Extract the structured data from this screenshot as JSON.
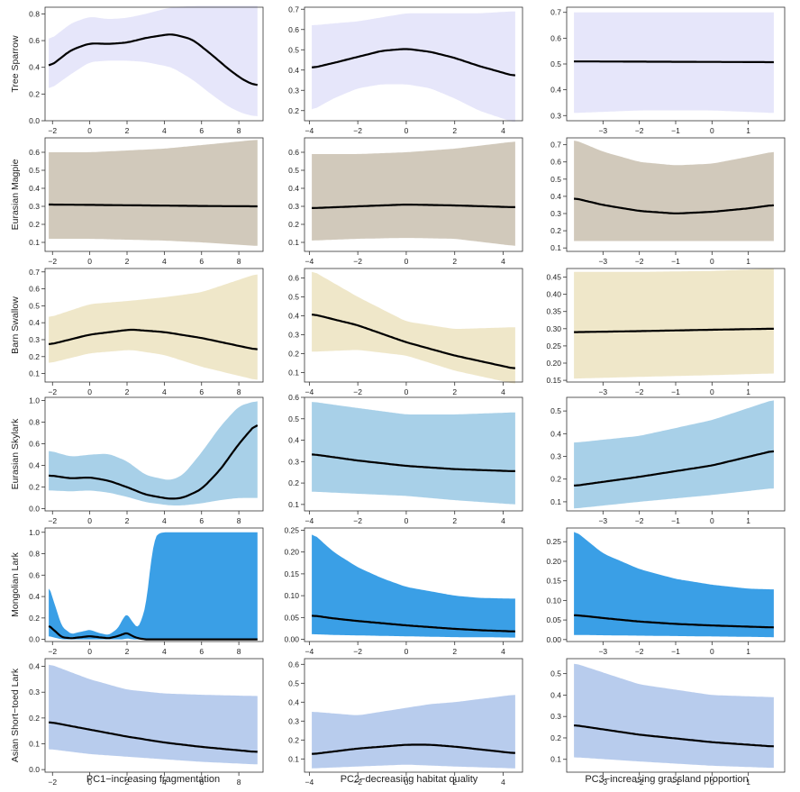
{
  "chart_data": {
    "type": "line",
    "layout": "6 rows x 3 columns of partial-effect plots with confidence bands",
    "column_xlabels": [
      "PC1−increasing fragmentation",
      "PC2−decreasing habitat quality",
      "PC3−increasing grassland proportion"
    ],
    "columns": [
      {
        "xlim": [
          -2.4,
          9.3
        ],
        "xticks": [
          -2,
          0,
          2,
          4,
          6,
          8
        ],
        "xrange": [
          -2.2,
          9.0
        ]
      },
      {
        "xlim": [
          -4.2,
          4.8
        ],
        "xticks": [
          -4,
          -2,
          0,
          2,
          4
        ],
        "xrange": [
          -3.9,
          4.5
        ]
      },
      {
        "xlim": [
          -4.0,
          2.0
        ],
        "xticks": [
          -3,
          -2,
          -1,
          0,
          1
        ],
        "xrange": [
          -3.8,
          1.7
        ]
      }
    ],
    "rows": [
      {
        "species": "Tree Sparrow",
        "color": "#e6e6fa",
        "panels": [
          {
            "ylim": [
              0.0,
              0.85
            ],
            "yticks": [
              "0.0",
              "0.2",
              "0.4",
              "0.6",
              "0.8"
            ],
            "x": [
              -2.2,
              -1,
              0,
              1,
              2,
              3,
              4.4,
              5.5,
              6.5,
              7.5,
              8.3,
              9
            ],
            "fit": [
              0.4,
              0.53,
              0.58,
              0.575,
              0.585,
              0.62,
              0.65,
              0.61,
              0.5,
              0.38,
              0.3,
              0.26
            ],
            "lower": [
              0.23,
              0.35,
              0.44,
              0.45,
              0.45,
              0.44,
              0.4,
              0.31,
              0.2,
              0.1,
              0.05,
              0.03
            ],
            "upper": [
              0.6,
              0.73,
              0.78,
              0.76,
              0.77,
              0.8,
              0.85,
              0.86,
              0.86,
              0.86,
              0.86,
              0.86
            ]
          },
          {
            "ylim": [
              0.15,
              0.71
            ],
            "yticks": [
              "0.2",
              "0.3",
              "0.4",
              "0.5",
              "0.6",
              "0.7"
            ],
            "x": [
              -3.9,
              -3,
              -2,
              -1,
              0,
              1,
              2,
              3,
              4.5
            ],
            "fit": [
              0.41,
              0.435,
              0.465,
              0.495,
              0.505,
              0.49,
              0.46,
              0.42,
              0.37
            ],
            "lower": [
              0.2,
              0.26,
              0.31,
              0.33,
              0.33,
              0.31,
              0.26,
              0.2,
              0.14
            ],
            "upper": [
              0.62,
              0.63,
              0.64,
              0.66,
              0.68,
              0.68,
              0.68,
              0.68,
              0.69
            ]
          },
          {
            "ylim": [
              0.28,
              0.72
            ],
            "yticks": [
              "0.3",
              "0.4",
              "0.5",
              "0.6",
              "0.7"
            ],
            "x": [
              -3.8,
              -2,
              0,
              1.7
            ],
            "fit": [
              0.51,
              0.509,
              0.508,
              0.507
            ],
            "lower": [
              0.31,
              0.32,
              0.32,
              0.31
            ],
            "upper": [
              0.7,
              0.7,
              0.7,
              0.7
            ]
          }
        ]
      },
      {
        "species": "Eurasian Magpie",
        "color": "#d1c9bb",
        "panels": [
          {
            "ylim": [
              0.05,
              0.68
            ],
            "yticks": [
              "0.1",
              "0.2",
              "0.3",
              "0.4",
              "0.5",
              "0.6"
            ],
            "x": [
              -2.2,
              0,
              2,
              4,
              6,
              9
            ],
            "fit": [
              0.31,
              0.308,
              0.306,
              0.304,
              0.302,
              0.3
            ],
            "lower": [
              0.12,
              0.12,
              0.115,
              0.11,
              0.1,
              0.08
            ],
            "upper": [
              0.6,
              0.6,
              0.61,
              0.62,
              0.64,
              0.67
            ]
          },
          {
            "ylim": [
              0.05,
              0.68
            ],
            "yticks": [
              "0.1",
              "0.2",
              "0.3",
              "0.4",
              "0.5",
              "0.6"
            ],
            "x": [
              -3.9,
              -2,
              0,
              2,
              4.5
            ],
            "fit": [
              0.29,
              0.3,
              0.31,
              0.305,
              0.295
            ],
            "lower": [
              0.11,
              0.12,
              0.125,
              0.12,
              0.08
            ],
            "upper": [
              0.59,
              0.59,
              0.6,
              0.62,
              0.66
            ]
          },
          {
            "ylim": [
              0.08,
              0.74
            ],
            "yticks": [
              "0.1",
              "0.2",
              "0.3",
              "0.4",
              "0.5",
              "0.6",
              "0.7"
            ],
            "x": [
              -3.8,
              -3,
              -2,
              -1,
              0,
              1,
              1.7
            ],
            "fit": [
              0.39,
              0.35,
              0.315,
              0.3,
              0.31,
              0.33,
              0.35
            ],
            "lower": [
              0.14,
              0.14,
              0.14,
              0.14,
              0.14,
              0.14,
              0.14
            ],
            "upper": [
              0.73,
              0.66,
              0.6,
              0.58,
              0.59,
              0.63,
              0.66
            ]
          }
        ]
      },
      {
        "species": "Barn Swallow",
        "color": "#efe7c9",
        "panels": [
          {
            "ylim": [
              0.05,
              0.72
            ],
            "yticks": [
              "0.1",
              "0.2",
              "0.3",
              "0.4",
              "0.5",
              "0.6",
              "0.7"
            ],
            "x": [
              -2.2,
              0,
              2.2,
              4,
              6,
              9
            ],
            "fit": [
              0.27,
              0.33,
              0.36,
              0.345,
              0.31,
              0.24
            ],
            "lower": [
              0.16,
              0.22,
              0.24,
              0.21,
              0.14,
              0.06
            ],
            "upper": [
              0.43,
              0.51,
              0.53,
              0.55,
              0.58,
              0.69
            ]
          },
          {
            "ylim": [
              0.05,
              0.65
            ],
            "yticks": [
              "0.1",
              "0.2",
              "0.3",
              "0.4",
              "0.5",
              "0.6"
            ],
            "x": [
              -3.9,
              -2,
              0,
              2,
              4.5
            ],
            "fit": [
              0.41,
              0.35,
              0.26,
              0.19,
              0.12
            ],
            "lower": [
              0.21,
              0.22,
              0.19,
              0.11,
              0.04
            ],
            "upper": [
              0.64,
              0.5,
              0.37,
              0.33,
              0.34
            ]
          },
          {
            "ylim": [
              0.145,
              0.475
            ],
            "yticks": [
              "0.15",
              "0.20",
              "0.25",
              "0.30",
              "0.35",
              "0.40",
              "0.45"
            ],
            "x": [
              -3.8,
              -2,
              0,
              1.7
            ],
            "fit": [
              0.29,
              0.293,
              0.297,
              0.3
            ],
            "lower": [
              0.155,
              0.16,
              0.165,
              0.17
            ],
            "upper": [
              0.465,
              0.465,
              0.468,
              0.475
            ]
          }
        ]
      },
      {
        "species": "Eurasian Skylark",
        "color": "#a8d0e8",
        "panels": [
          {
            "ylim": [
              -0.02,
              1.03
            ],
            "yticks": [
              "0.0",
              "0.2",
              "0.4",
              "0.6",
              "0.8",
              "1.0"
            ],
            "x": [
              -2.2,
              -1,
              0,
              1,
              2,
              3,
              4.3,
              5,
              6,
              7,
              8,
              9
            ],
            "fit": [
              0.31,
              0.28,
              0.29,
              0.26,
              0.2,
              0.13,
              0.09,
              0.1,
              0.18,
              0.36,
              0.6,
              0.8
            ],
            "lower": [
              0.17,
              0.16,
              0.17,
              0.15,
              0.11,
              0.06,
              0.03,
              0.03,
              0.05,
              0.08,
              0.1,
              0.1
            ],
            "upper": [
              0.54,
              0.48,
              0.5,
              0.51,
              0.44,
              0.31,
              0.26,
              0.31,
              0.52,
              0.76,
              0.95,
              1.0
            ]
          },
          {
            "ylim": [
              0.07,
              0.6
            ],
            "yticks": [
              "0.1",
              "0.2",
              "0.3",
              "0.4",
              "0.5",
              "0.6"
            ],
            "x": [
              -3.9,
              -2,
              0,
              2,
              4.5
            ],
            "fit": [
              0.335,
              0.305,
              0.28,
              0.265,
              0.255
            ],
            "lower": [
              0.16,
              0.15,
              0.14,
              0.12,
              0.1
            ],
            "upper": [
              0.58,
              0.55,
              0.52,
              0.52,
              0.53
            ]
          },
          {
            "ylim": [
              0.06,
              0.56
            ],
            "yticks": [
              "0.1",
              "0.2",
              "0.3",
              "0.4",
              "0.5"
            ],
            "x": [
              -3.8,
              -2,
              0,
              1.7
            ],
            "fit": [
              0.17,
              0.21,
              0.26,
              0.325
            ],
            "lower": [
              0.07,
              0.1,
              0.13,
              0.16
            ],
            "upper": [
              0.36,
              0.39,
              0.46,
              0.55
            ]
          }
        ]
      },
      {
        "species": "Mongolian Lark",
        "color": "#3a9fe6",
        "panels": [
          {
            "ylim": [
              -0.02,
              1.04
            ],
            "yticks": [
              "0.0",
              "0.2",
              "0.4",
              "0.6",
              "0.8",
              "1.0"
            ],
            "x": [
              -2.2,
              -1.5,
              -1,
              -0.5,
              0,
              0.5,
              1,
              1.5,
              1.8,
              2,
              2.3,
              2.6,
              3,
              3.3,
              3.5,
              3.7,
              4,
              5,
              6,
              7,
              8,
              9
            ],
            "fit": [
              0.13,
              0.02,
              0.01,
              0.02,
              0.03,
              0.02,
              0.01,
              0.03,
              0.05,
              0.06,
              0.03,
              0.01,
              0.0,
              0.0,
              0.0,
              0.0,
              0.0,
              0.0,
              0.0,
              0.0,
              0.0,
              0.0
            ],
            "lower": [
              0.03,
              0.0,
              0.0,
              0.0,
              0.0,
              0.0,
              0.0,
              0.0,
              0.0,
              0.01,
              0.0,
              0.0,
              0.0,
              0.0,
              0.0,
              0.0,
              0.0,
              0.0,
              0.0,
              0.0,
              0.0,
              0.0
            ],
            "upper": [
              0.5,
              0.12,
              0.05,
              0.07,
              0.09,
              0.06,
              0.04,
              0.1,
              0.2,
              0.24,
              0.16,
              0.1,
              0.3,
              0.75,
              0.95,
              0.99,
              1.0,
              1.0,
              1.0,
              1.0,
              1.0,
              1.0
            ]
          },
          {
            "ylim": [
              -0.005,
              0.255
            ],
            "yticks": [
              "0.00",
              "0.05",
              "0.10",
              "0.15",
              "0.20",
              "0.25"
            ],
            "x": [
              -3.9,
              -3,
              -2,
              -1,
              0,
              1,
              2,
              3,
              4.5
            ],
            "fit": [
              0.055,
              0.048,
              0.042,
              0.037,
              0.032,
              0.028,
              0.024,
              0.021,
              0.018
            ],
            "lower": [
              0.012,
              0.01,
              0.009,
              0.008,
              0.007,
              0.006,
              0.005,
              0.005,
              0.004
            ],
            "upper": [
              0.245,
              0.2,
              0.165,
              0.14,
              0.12,
              0.11,
              0.1,
              0.095,
              0.093
            ]
          },
          {
            "ylim": [
              -0.005,
              0.285
            ],
            "yticks": [
              "0.00",
              "0.05",
              "0.10",
              "0.15",
              "0.20",
              "0.25"
            ],
            "x": [
              -3.8,
              -3,
              -2,
              -1,
              0,
              1,
              1.7
            ],
            "fit": [
              0.063,
              0.055,
              0.046,
              0.04,
              0.036,
              0.033,
              0.031
            ],
            "lower": [
              0.012,
              0.011,
              0.01,
              0.009,
              0.008,
              0.007,
              0.006
            ],
            "upper": [
              0.28,
              0.22,
              0.18,
              0.155,
              0.14,
              0.13,
              0.128
            ]
          }
        ]
      },
      {
        "species": "Asian Short−toed Lark",
        "color": "#b8cced",
        "panels": [
          {
            "ylim": [
              -0.01,
              0.43
            ],
            "yticks": [
              "0.0",
              "0.1",
              "0.2",
              "0.3",
              "0.4"
            ],
            "x": [
              -2.2,
              0,
              2,
              4,
              6,
              9
            ],
            "fit": [
              0.185,
              0.155,
              0.128,
              0.105,
              0.088,
              0.068
            ],
            "lower": [
              0.08,
              0.06,
              0.05,
              0.04,
              0.03,
              0.02
            ],
            "upper": [
              0.41,
              0.35,
              0.31,
              0.295,
              0.29,
              0.285
            ]
          },
          {
            "ylim": [
              0.03,
              0.63
            ],
            "yticks": [
              "0.1",
              "0.2",
              "0.3",
              "0.4",
              "0.5",
              "0.6"
            ],
            "x": [
              -3.9,
              -2,
              0,
              1,
              2,
              4.5
            ],
            "fit": [
              0.125,
              0.155,
              0.175,
              0.175,
              0.165,
              0.13
            ],
            "lower": [
              0.05,
              0.06,
              0.07,
              0.065,
              0.06,
              0.05
            ],
            "upper": [
              0.35,
              0.33,
              0.37,
              0.39,
              0.4,
              0.44
            ]
          },
          {
            "ylim": [
              0.04,
              0.57
            ],
            "yticks": [
              "0.1",
              "0.2",
              "0.3",
              "0.4",
              "0.5"
            ],
            "x": [
              -3.8,
              -2,
              0,
              1.7
            ],
            "fit": [
              0.26,
              0.215,
              0.18,
              0.16
            ],
            "lower": [
              0.11,
              0.09,
              0.07,
              0.06
            ],
            "upper": [
              0.55,
              0.45,
              0.4,
              0.39
            ]
          }
        ]
      }
    ]
  }
}
